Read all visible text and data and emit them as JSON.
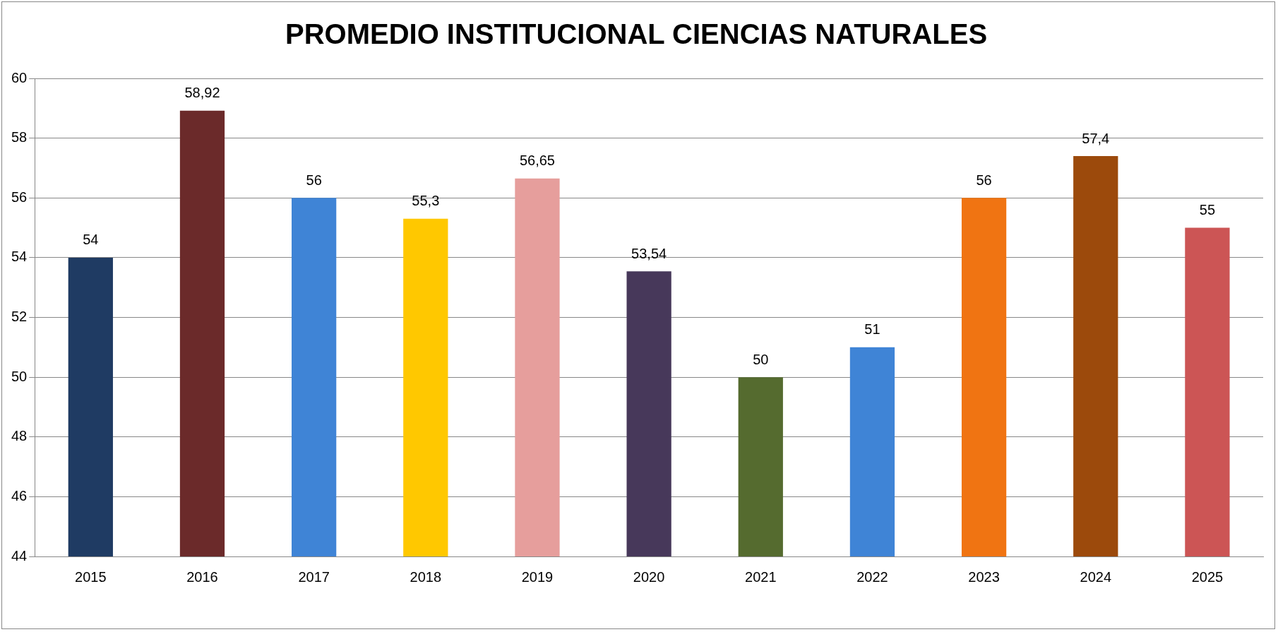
{
  "chart_data": {
    "type": "bar",
    "title": "PROMEDIO INSTITUCIONAL CIENCIAS NATURALES",
    "categories": [
      "2015",
      "2016",
      "2017",
      "2018",
      "2019",
      "2020",
      "2021",
      "2022",
      "2023",
      "2024",
      "2025"
    ],
    "values": [
      54,
      58.92,
      56,
      55.3,
      56.65,
      53.54,
      50,
      51,
      56,
      57.4,
      55
    ],
    "value_labels": [
      "54",
      "58,92",
      "56",
      "55,3",
      "56,65",
      "53,54",
      "50",
      "51",
      "56",
      "57,4",
      "55"
    ],
    "colors": [
      "#1f3b63",
      "#6b2a2a",
      "#3f84d6",
      "#ffc800",
      "#e69e9c",
      "#47385a",
      "#556b2f",
      "#3f84d6",
      "#f07412",
      "#9c4a0c",
      "#cc5555"
    ],
    "ylim": [
      44,
      60
    ],
    "yticks": [
      44,
      46,
      48,
      50,
      52,
      54,
      56,
      58,
      60
    ],
    "grid": "y",
    "legend": false
  }
}
